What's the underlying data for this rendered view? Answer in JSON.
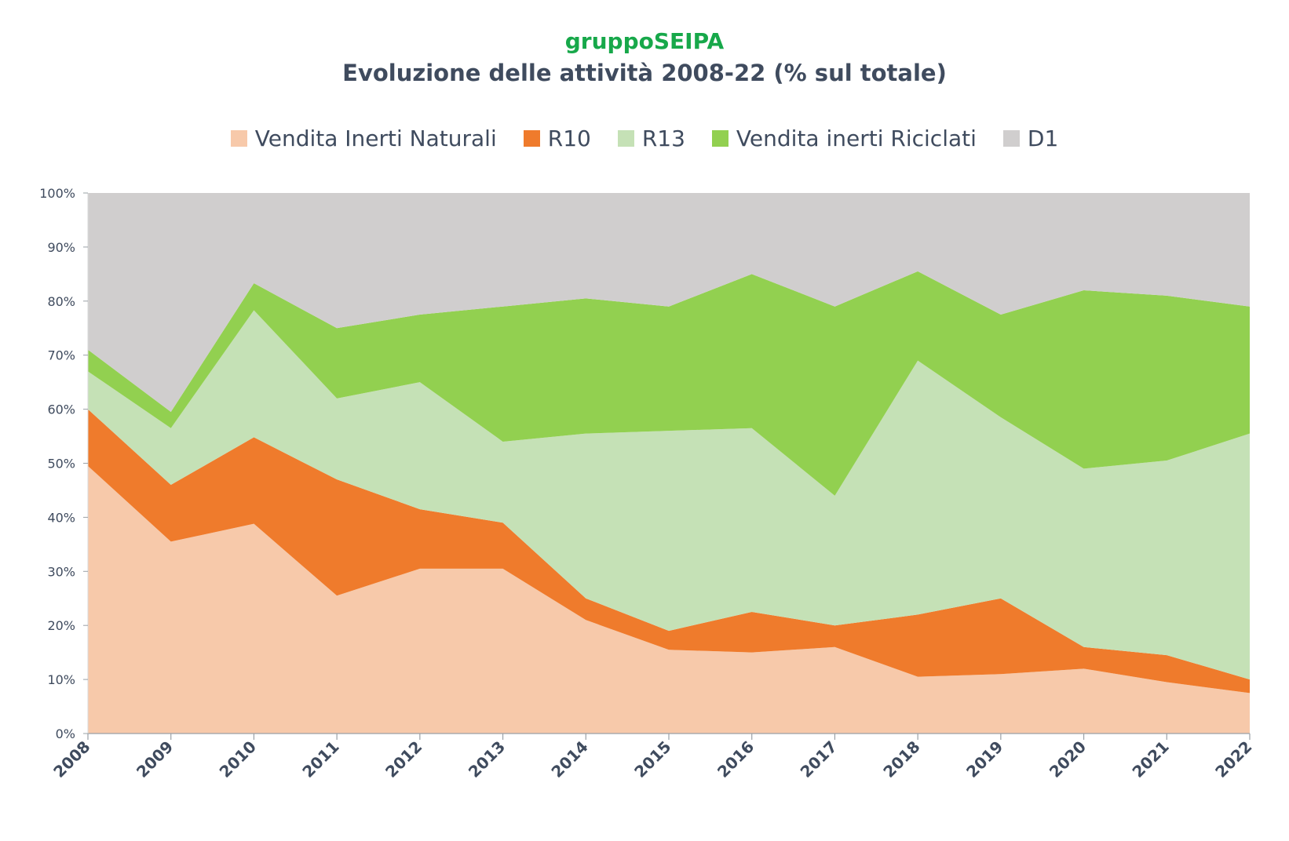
{
  "header": {
    "brand": "gruppoSEIPA",
    "title": "Evoluzione delle attività 2008-22 (% sul totale)"
  },
  "chart_data": {
    "type": "area",
    "stacked": true,
    "percent": true,
    "title": "Evoluzione delle attività 2008-22 (% sul totale)",
    "categories": [
      "2008",
      "2009",
      "2010",
      "2011",
      "2012",
      "2013",
      "2014",
      "2015",
      "2016",
      "2017",
      "2018",
      "2019",
      "2020",
      "2021",
      "2022"
    ],
    "y_ticks": [
      "0%",
      "10%",
      "20%",
      "30%",
      "40%",
      "50%",
      "60%",
      "70%",
      "80%",
      "90%",
      "100%"
    ],
    "ylim": [
      0,
      100
    ],
    "grid": false,
    "legend_position": "top",
    "series": [
      {
        "name": "Vendita Inerti Naturali",
        "color": "#f7c9aa",
        "values": [
          49.5,
          35.5,
          38.8,
          25.5,
          30.5,
          30.5,
          21,
          15.5,
          15,
          16,
          10.5,
          11,
          12,
          9.5,
          7.5
        ]
      },
      {
        "name": "R10",
        "color": "#ef7b2c",
        "values": [
          10.5,
          10.5,
          16,
          21.5,
          11,
          8.5,
          4,
          3.5,
          7.5,
          4,
          11.5,
          14,
          4,
          5,
          2.5
        ]
      },
      {
        "name": "R13",
        "color": "#c5e1b6",
        "values": [
          7,
          10.5,
          23.5,
          15,
          23.5,
          15,
          30.5,
          37,
          34,
          24,
          47,
          33.5,
          33,
          36,
          45.5
        ]
      },
      {
        "name": "Vendita inerti Riciclati",
        "color": "#92d050",
        "values": [
          4,
          3,
          5,
          13,
          12.5,
          25,
          25,
          23,
          28.5,
          35,
          16.5,
          19,
          33,
          30.5,
          23.5
        ]
      },
      {
        "name": "D1",
        "color": "#d0cece",
        "values": [
          29,
          40.5,
          16.7,
          25,
          22.5,
          21,
          19.5,
          21,
          15,
          21,
          14.5,
          22.5,
          18,
          19,
          21
        ]
      }
    ]
  }
}
